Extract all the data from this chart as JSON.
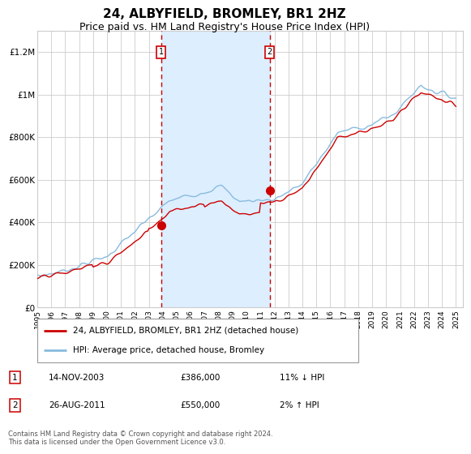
{
  "title": "24, ALBYFIELD, BROMLEY, BR1 2HZ",
  "subtitle": "Price paid vs. HM Land Registry's House Price Index (HPI)",
  "title_fontsize": 11,
  "subtitle_fontsize": 9,
  "background_color": "#ffffff",
  "plot_bg_color": "#ffffff",
  "grid_color": "#cccccc",
  "hpi_line_color": "#88bbdd",
  "price_line_color": "#cc0000",
  "vline_color": "#cc0000",
  "shade_color": "#ddeeff",
  "dot_color": "#cc0000",
  "ylim": [
    0,
    1300000
  ],
  "ytick_labels": [
    "£0",
    "£200K",
    "£400K",
    "£600K",
    "£800K",
    "£1M",
    "£1.2M"
  ],
  "ytick_values": [
    0,
    200000,
    400000,
    600000,
    800000,
    1000000,
    1200000
  ],
  "purchase1": {
    "date_num": 2003.87,
    "price": 386000,
    "label": "1",
    "date_str": "14-NOV-2003",
    "price_str": "£386,000",
    "pct": "11% ↓ HPI"
  },
  "purchase2": {
    "date_num": 2011.65,
    "price": 550000,
    "label": "2",
    "date_str": "26-AUG-2011",
    "price_str": "£550,000",
    "pct": "2% ↑ HPI"
  },
  "legend_line1": "24, ALBYFIELD, BROMLEY, BR1 2HZ (detached house)",
  "legend_line2": "HPI: Average price, detached house, Bromley",
  "footer": "Contains HM Land Registry data © Crown copyright and database right 2024.\nThis data is licensed under the Open Government Licence v3.0.",
  "xtick_years": [
    1995,
    1996,
    1997,
    1998,
    1999,
    2000,
    2001,
    2002,
    2003,
    2004,
    2005,
    2006,
    2007,
    2008,
    2009,
    2010,
    2011,
    2012,
    2013,
    2014,
    2015,
    2016,
    2017,
    2018,
    2019,
    2020,
    2021,
    2022,
    2023,
    2024,
    2025
  ]
}
